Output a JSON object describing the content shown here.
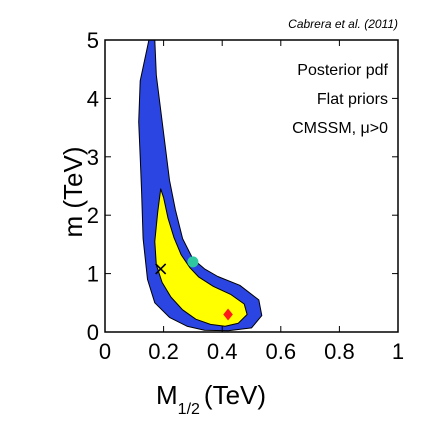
{
  "chart_data": {
    "type": "contour",
    "citation": "Cabrera et al. (2011)",
    "annotations": [
      "Posterior pdf",
      "Flat priors",
      "CMSSM, μ>0"
    ],
    "xlabel_main": "M",
    "xlabel_sub": "1/2",
    "xlabel_unit": "(TeV)",
    "ylabel": "m (TeV)",
    "xlim": [
      0,
      1
    ],
    "ylim": [
      0,
      5
    ],
    "xticks": [
      0,
      0.2,
      0.4,
      0.6,
      0.8,
      1
    ],
    "xtick_labels": [
      "0",
      "0.2",
      "0.4",
      "0.6",
      "0.8",
      "1"
    ],
    "yticks": [
      0,
      1,
      2,
      3,
      4,
      5
    ],
    "ytick_labels": [
      "0",
      "1",
      "2",
      "3",
      "4",
      "5"
    ],
    "colors": {
      "outer": "#2b45e2",
      "inner": "#ffff00",
      "outline": "#000000"
    },
    "regions": [
      {
        "level": "outer",
        "points": [
          [
            0.15,
            5.0
          ],
          [
            0.12,
            4.3
          ],
          [
            0.115,
            3.6
          ],
          [
            0.12,
            3.0
          ],
          [
            0.125,
            2.4
          ],
          [
            0.13,
            1.6
          ],
          [
            0.145,
            0.9
          ],
          [
            0.17,
            0.5
          ],
          [
            0.22,
            0.25
          ],
          [
            0.28,
            0.1
          ],
          [
            0.34,
            0.03
          ],
          [
            0.42,
            0.02
          ],
          [
            0.5,
            0.07
          ],
          [
            0.535,
            0.28
          ],
          [
            0.525,
            0.55
          ],
          [
            0.46,
            0.8
          ],
          [
            0.385,
            0.95
          ],
          [
            0.34,
            1.08
          ],
          [
            0.3,
            1.25
          ],
          [
            0.265,
            1.6
          ],
          [
            0.24,
            2.1
          ],
          [
            0.22,
            2.6
          ],
          [
            0.205,
            3.2
          ],
          [
            0.19,
            3.8
          ],
          [
            0.175,
            4.4
          ],
          [
            0.17,
            5.0
          ]
        ]
      },
      {
        "level": "inner",
        "points": [
          [
            0.19,
            2.45
          ],
          [
            0.18,
            2.05
          ],
          [
            0.17,
            1.55
          ],
          [
            0.175,
            1.15
          ],
          [
            0.195,
            0.85
          ],
          [
            0.225,
            0.6
          ],
          [
            0.265,
            0.38
          ],
          [
            0.31,
            0.22
          ],
          [
            0.36,
            0.13
          ],
          [
            0.41,
            0.1
          ],
          [
            0.455,
            0.15
          ],
          [
            0.485,
            0.3
          ],
          [
            0.475,
            0.48
          ],
          [
            0.43,
            0.64
          ],
          [
            0.37,
            0.78
          ],
          [
            0.32,
            0.94
          ],
          [
            0.29,
            1.1
          ],
          [
            0.26,
            1.32
          ],
          [
            0.235,
            1.62
          ],
          [
            0.215,
            1.95
          ],
          [
            0.2,
            2.3
          ]
        ]
      }
    ],
    "markers": [
      {
        "name": "best-fit",
        "shape": "x",
        "x": 0.19,
        "y": 1.08,
        "color": "#000000"
      },
      {
        "name": "posterior-mean",
        "shape": "circle",
        "x": 0.3,
        "y": 1.2,
        "color": "#2ec7a0"
      },
      {
        "name": "posterior-peak",
        "shape": "diamond",
        "x": 0.42,
        "y": 0.3,
        "color": "#ff1a1a"
      }
    ]
  }
}
